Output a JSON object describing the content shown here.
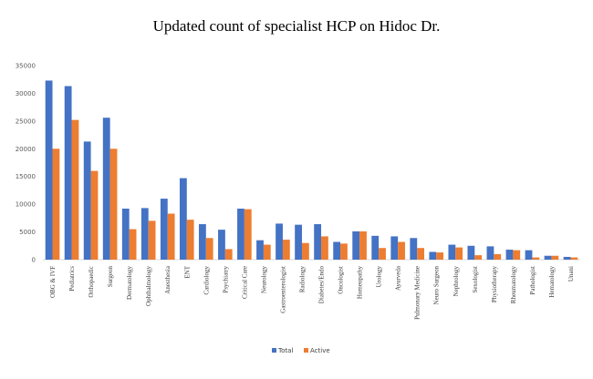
{
  "chart_data": {
    "type": "bar",
    "title": "Updated count of specialist HCP on Hidoc Dr.",
    "xlabel": "",
    "ylabel": "",
    "ylim": [
      0,
      35000
    ],
    "yticks": [
      0,
      5000,
      10000,
      15000,
      20000,
      25000,
      30000,
      35000
    ],
    "grid": false,
    "legend_position": "bottom",
    "categories": [
      "OBG & IVF",
      "Pediatrics",
      "Orthopaedic",
      "Surgeon",
      "Dermatology",
      "Ophthalmology",
      "Anesthesia",
      "ENT",
      "Cardiology",
      "Psychiatry",
      "Critical Care",
      "Neurology",
      "Gastroenterologist",
      "Radiology",
      "Diabetes/Endo",
      "Oncologist",
      "Homeopathy",
      "Urology",
      "Ayurveda",
      "Pulmonary Medicine",
      "Neuro Surgeon",
      "Nephrology",
      "Sexologist",
      "Physiotherapy",
      "Rheumatology",
      "Pathologist",
      "Hematology",
      "Unani"
    ],
    "series": [
      {
        "name": "Total",
        "color": "#4472C4",
        "values": [
          32300,
          31300,
          21300,
          25600,
          9200,
          9300,
          11000,
          14700,
          6400,
          5400,
          9200,
          3500,
          6500,
          6300,
          6400,
          3200,
          5100,
          4300,
          4200,
          3900,
          1400,
          2700,
          2500,
          2400,
          1800,
          1700,
          700,
          500
        ]
      },
      {
        "name": "Active",
        "color": "#ED7D31",
        "values": [
          20000,
          25200,
          16000,
          20000,
          5500,
          7000,
          8300,
          7200,
          3900,
          1900,
          9100,
          2700,
          3600,
          3000,
          4200,
          2900,
          5100,
          2100,
          3200,
          2100,
          1300,
          2200,
          800,
          1000,
          1700,
          400,
          700,
          400
        ]
      }
    ]
  }
}
